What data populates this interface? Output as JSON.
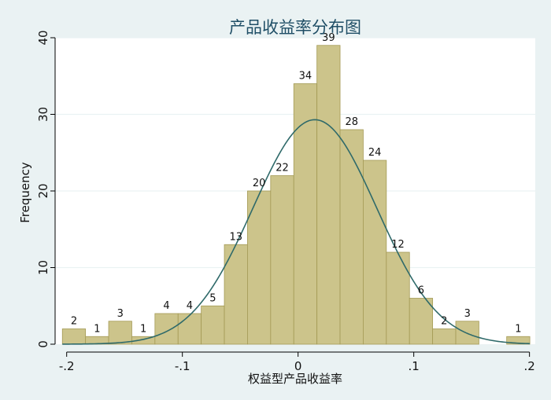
{
  "chart_data": {
    "type": "bar",
    "title": "产品收益率分布图",
    "xlabel": "权益型产品收益率",
    "ylabel": "Frequency",
    "xlim": [
      -0.21,
      0.205
    ],
    "ylim": [
      0,
      40
    ],
    "xticks": [
      {
        "value": -0.2,
        "label": "-.2"
      },
      {
        "value": -0.1,
        "label": "-.1"
      },
      {
        "value": 0,
        "label": "0"
      },
      {
        "value": 0.1,
        "label": ".1"
      },
      {
        "value": 0.2,
        "label": ".2"
      }
    ],
    "yticks": [
      {
        "value": 0,
        "label": "0"
      },
      {
        "value": 10,
        "label": "10"
      },
      {
        "value": 20,
        "label": "20"
      },
      {
        "value": 30,
        "label": "30"
      },
      {
        "value": 40,
        "label": "40"
      }
    ],
    "grid": true,
    "bins": [
      {
        "x0": -0.2037,
        "x1": -0.1837,
        "count": 2,
        "label": "2"
      },
      {
        "x0": -0.1837,
        "x1": -0.1637,
        "count": 1,
        "label": "1"
      },
      {
        "x0": -0.1637,
        "x1": -0.1437,
        "count": 3,
        "label": "3"
      },
      {
        "x0": -0.1437,
        "x1": -0.1237,
        "count": 1,
        "label": "1"
      },
      {
        "x0": -0.1237,
        "x1": -0.1037,
        "count": 4,
        "label": "4"
      },
      {
        "x0": -0.1037,
        "x1": -0.0837,
        "count": 4,
        "label": "4"
      },
      {
        "x0": -0.0837,
        "x1": -0.0637,
        "count": 5,
        "label": "5"
      },
      {
        "x0": -0.0637,
        "x1": -0.0437,
        "count": 13,
        "label": "13"
      },
      {
        "x0": -0.0437,
        "x1": -0.0237,
        "count": 20,
        "label": "20"
      },
      {
        "x0": -0.0237,
        "x1": -0.0037,
        "count": 22,
        "label": "22"
      },
      {
        "x0": -0.0037,
        "x1": 0.0163,
        "count": 34,
        "label": "34"
      },
      {
        "x0": 0.0163,
        "x1": 0.0363,
        "count": 39,
        "label": "39"
      },
      {
        "x0": 0.0363,
        "x1": 0.0563,
        "count": 28,
        "label": "28"
      },
      {
        "x0": 0.0563,
        "x1": 0.0763,
        "count": 24,
        "label": "24"
      },
      {
        "x0": 0.0763,
        "x1": 0.0963,
        "count": 12,
        "label": "12"
      },
      {
        "x0": 0.0963,
        "x1": 0.1163,
        "count": 6,
        "label": "6"
      },
      {
        "x0": 0.1163,
        "x1": 0.1363,
        "count": 2,
        "label": "2"
      },
      {
        "x0": 0.1363,
        "x1": 0.1563,
        "count": 3,
        "label": "3"
      },
      {
        "x0": 0.1803,
        "x1": 0.2003,
        "count": 1,
        "label": "1"
      }
    ],
    "normal_curve": {
      "mean": 0.0145,
      "sd": 0.0535,
      "peak": 29.3
    },
    "colors": {
      "bar_fill": "#ccc48b",
      "bar_stroke": "#a49a55",
      "curve": "#2f6a6a",
      "grid": "#ffffff",
      "plot_bg": "#ffffff",
      "page_bg": "#eaf2f3",
      "title": "#1f4e66"
    }
  }
}
